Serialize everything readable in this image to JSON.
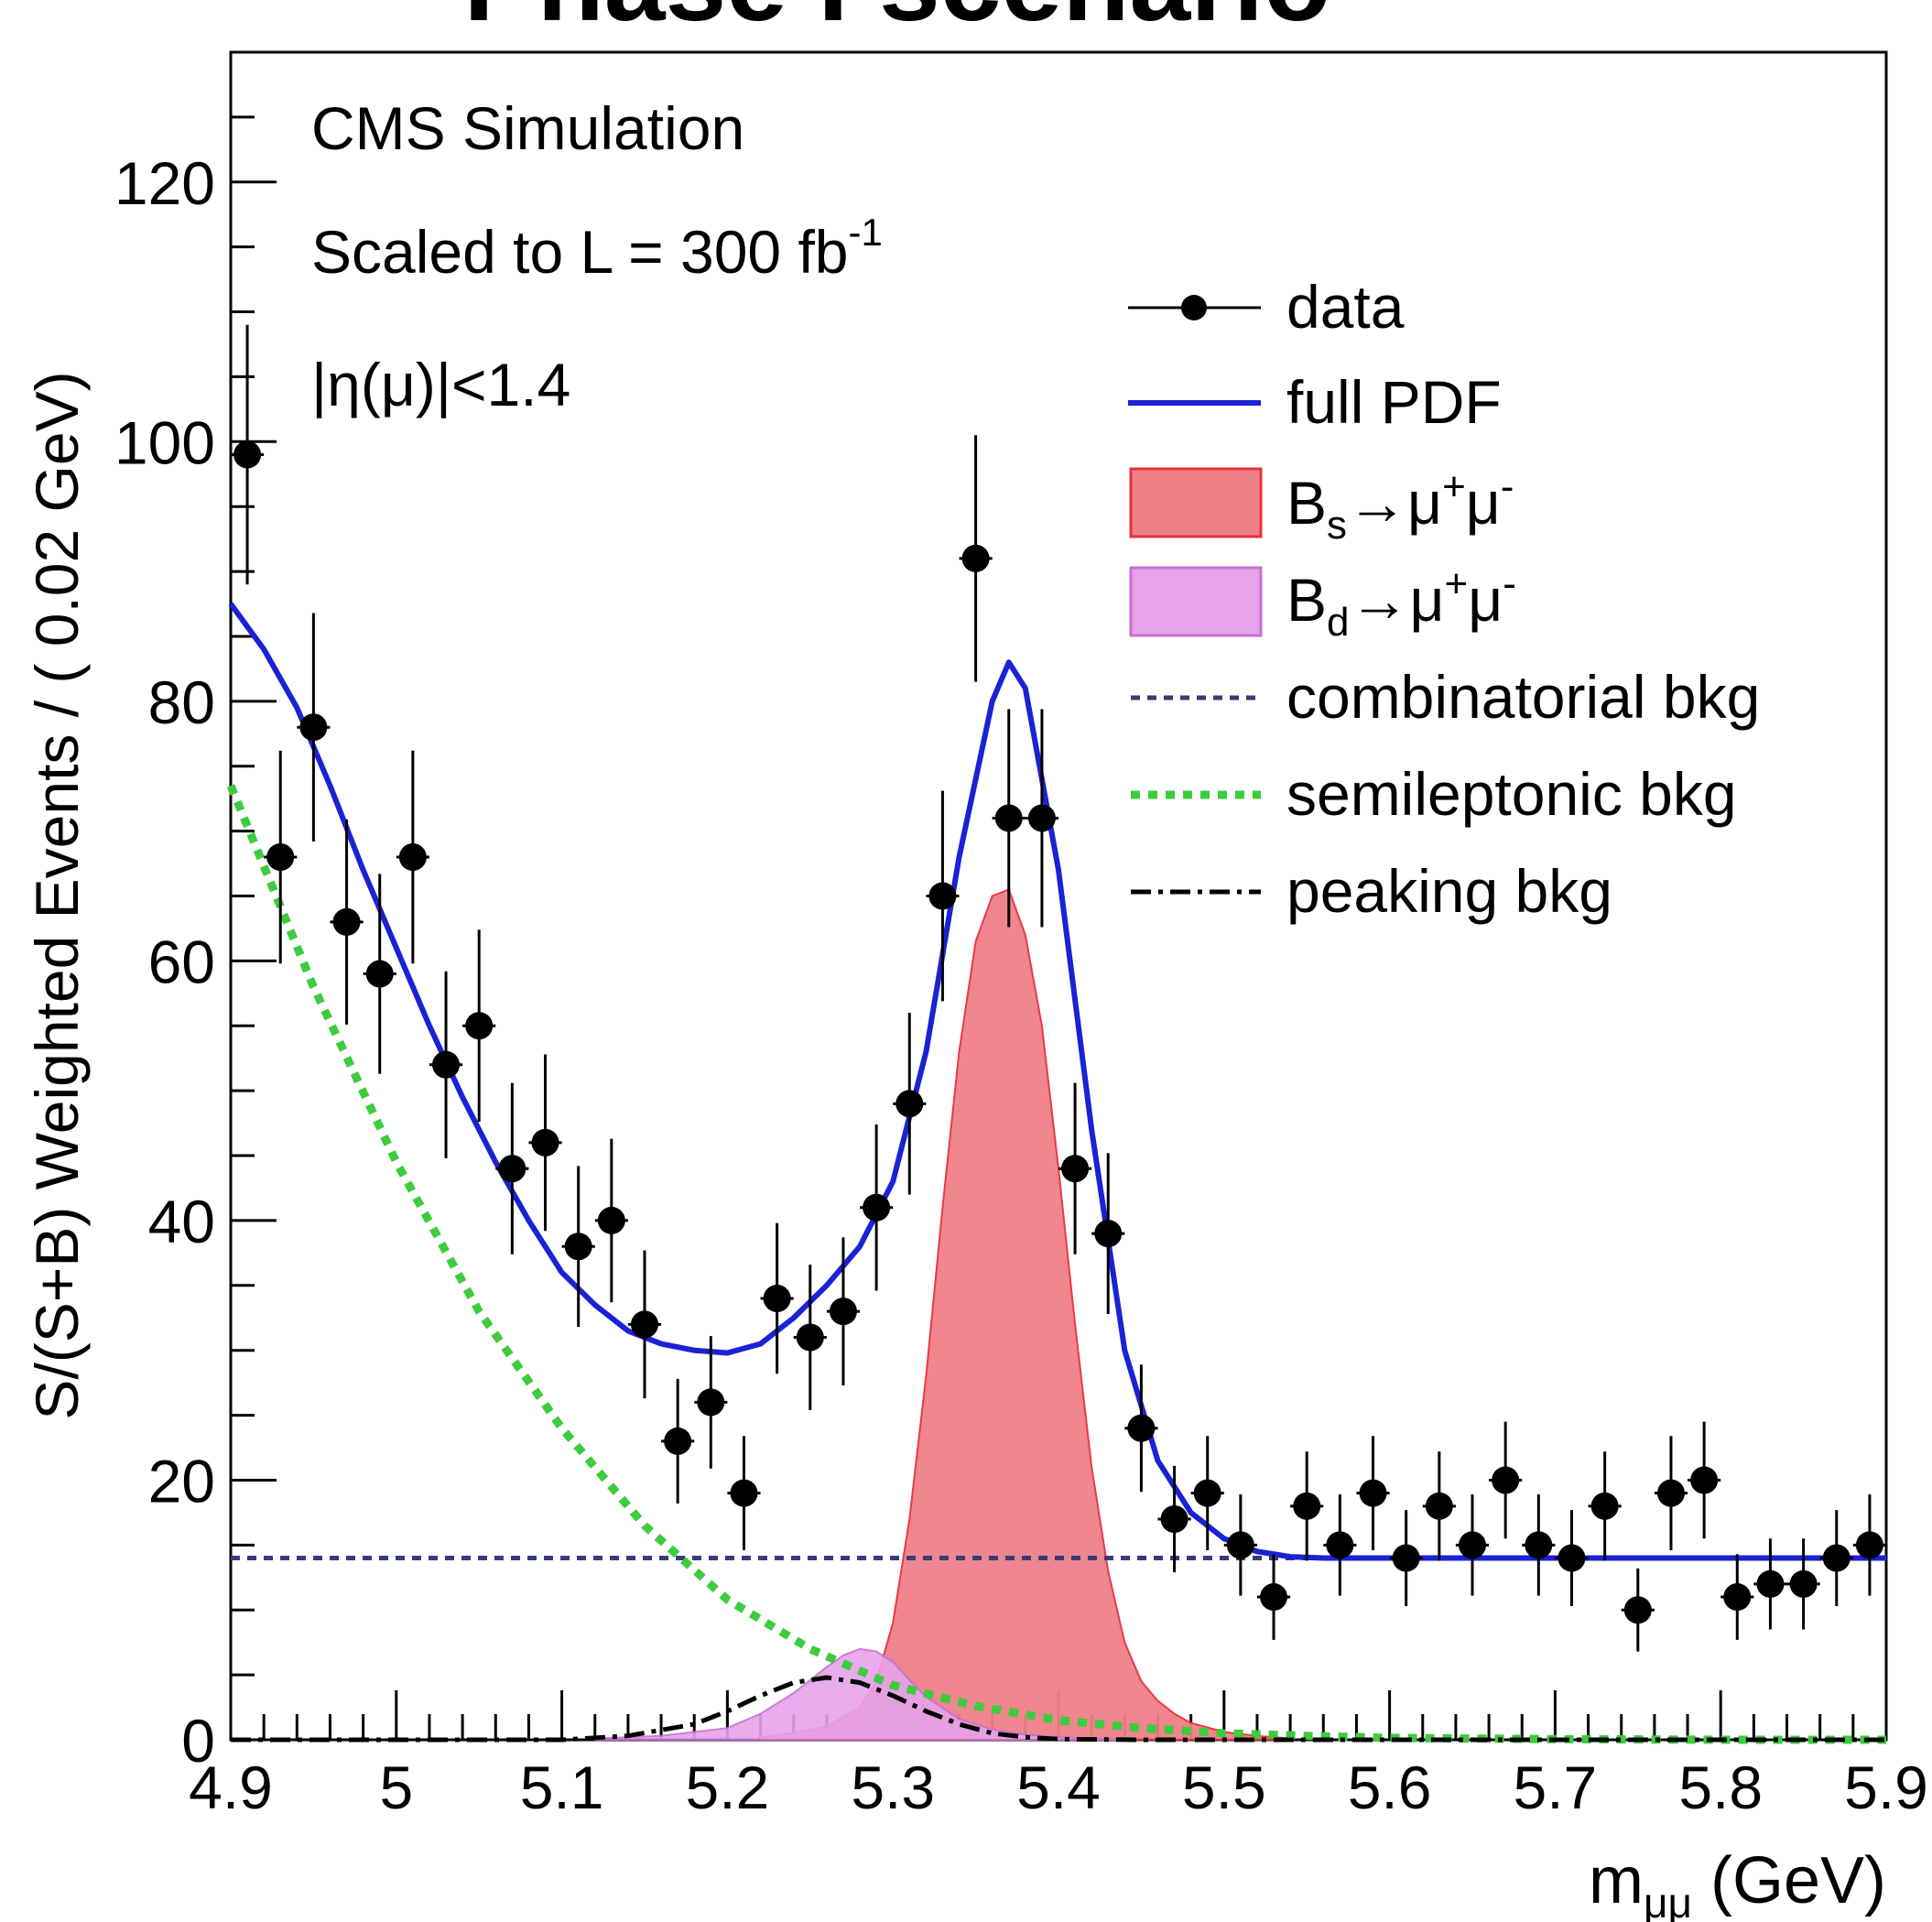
{
  "header": {
    "title_fragment": "Phase I scenario",
    "title_color": "#1b5f9d"
  },
  "chart_data": {
    "type": "scatter",
    "xlabel": "m",
    "xlabel_sub": "μμ",
    "xlabel_unit": " (GeV)",
    "ylabel": "S/(S+B) Weighted Events / ( 0.02 GeV)",
    "xlim": [
      4.9,
      5.9
    ],
    "ylim": [
      0,
      130
    ],
    "x_ticks": [
      "4.9",
      "5",
      "5.1",
      "5.2",
      "5.3",
      "5.4",
      "5.5",
      "5.6",
      "5.7",
      "5.8",
      "5.9"
    ],
    "x_tick_values": [
      4.9,
      5.0,
      5.1,
      5.2,
      5.3,
      5.4,
      5.5,
      5.6,
      5.7,
      5.8,
      5.9
    ],
    "y_ticks": [
      "0",
      "20",
      "40",
      "60",
      "80",
      "100",
      "120"
    ],
    "y_tick_values": [
      0,
      20,
      40,
      60,
      80,
      100,
      120
    ],
    "annotations": {
      "line1": "CMS Simulation",
      "line2_text": "Scaled to L = 300 fb",
      "line2_sup": "-1",
      "line3": "|η(μ)|<1.4"
    },
    "legend_position": "top-right",
    "legend": {
      "data": "data",
      "full_pdf": "full PDF",
      "bs": {
        "base": "B",
        "sub": "s",
        "arrow": "→",
        "mu1": "μ",
        "sup1": "+",
        "mu2": "μ",
        "sup2": "-"
      },
      "bd": {
        "base": "B",
        "sub": "d",
        "arrow": "→",
        "mu1": "μ",
        "sup1": "+",
        "mu2": "μ",
        "sup2": "-"
      },
      "combinatorial": "combinatorial bkg",
      "semileptonic": "semileptonic bkg",
      "peaking": "peaking bkg"
    },
    "colors": {
      "data": "#000000",
      "full_pdf": "#1a22d6",
      "bs_fill": "#f08088",
      "bs_edge": "#e8303c",
      "bd_fill": "#e6a3ea",
      "bd_edge": "#c770d4",
      "combinatorial": "#3a3a7a",
      "semileptonic": "#3ccc3c",
      "peaking": "#000000"
    },
    "bin_width": 0.02,
    "data": {
      "x": [
        4.91,
        4.93,
        4.95,
        4.97,
        4.99,
        5.01,
        5.03,
        5.05,
        5.07,
        5.09,
        5.11,
        5.13,
        5.15,
        5.17,
        5.19,
        5.21,
        5.23,
        5.25,
        5.27,
        5.29,
        5.31,
        5.33,
        5.35,
        5.37,
        5.39,
        5.41,
        5.43,
        5.45,
        5.47,
        5.49,
        5.51,
        5.53,
        5.55,
        5.57,
        5.59,
        5.61,
        5.63,
        5.65,
        5.67,
        5.69,
        5.71,
        5.73,
        5.75,
        5.77,
        5.79,
        5.81,
        5.83,
        5.85,
        5.87,
        5.89
      ],
      "y": [
        99,
        68,
        78,
        63,
        59,
        68,
        52,
        55,
        44,
        46,
        38,
        40,
        32,
        23,
        26,
        19,
        34,
        31,
        33,
        41,
        49,
        65,
        91,
        71,
        71,
        44,
        39,
        24,
        17,
        19,
        15,
        11,
        18,
        15,
        19,
        14,
        18,
        15,
        20,
        15,
        14,
        18,
        10,
        19,
        20,
        11,
        12,
        12,
        14,
        15
      ],
      "yerr": [
        10,
        8.2,
        8.8,
        7.9,
        7.7,
        8.2,
        7.2,
        7.4,
        6.6,
        6.8,
        6.2,
        6.3,
        5.7,
        4.8,
        5.1,
        4.4,
        5.8,
        5.6,
        5.7,
        6.4,
        7.0,
        8.1,
        9.5,
        8.4,
        8.4,
        6.6,
        6.2,
        4.9,
        4.1,
        4.4,
        3.9,
        3.3,
        4.2,
        3.9,
        4.4,
        3.7,
        4.2,
        3.9,
        4.5,
        3.9,
        3.7,
        4.2,
        3.2,
        4.4,
        4.5,
        3.3,
        3.5,
        3.5,
        3.7,
        3.9
      ]
    },
    "full_pdf": {
      "x": [
        4.9,
        4.92,
        4.94,
        4.96,
        4.98,
        5.0,
        5.02,
        5.04,
        5.06,
        5.08,
        5.1,
        5.12,
        5.14,
        5.16,
        5.18,
        5.2,
        5.22,
        5.24,
        5.26,
        5.28,
        5.3,
        5.32,
        5.34,
        5.36,
        5.37,
        5.38,
        5.4,
        5.42,
        5.44,
        5.46,
        5.48,
        5.5,
        5.52,
        5.54,
        5.56,
        5.6,
        5.7,
        5.8,
        5.9
      ],
      "y": [
        87.5,
        84,
        79.5,
        73.5,
        67,
        61,
        55,
        49.5,
        44.5,
        40,
        36,
        33.5,
        31.5,
        30.5,
        30,
        29.8,
        30.5,
        32.5,
        35,
        38,
        43,
        53,
        68,
        80,
        83,
        81,
        67,
        47,
        30,
        21.5,
        17.5,
        15.5,
        14.5,
        14.1,
        14,
        14,
        14,
        14,
        14
      ]
    },
    "bs": {
      "x": [
        5.22,
        5.24,
        5.26,
        5.28,
        5.29,
        5.3,
        5.31,
        5.32,
        5.33,
        5.34,
        5.35,
        5.36,
        5.37,
        5.38,
        5.39,
        5.4,
        5.41,
        5.42,
        5.43,
        5.44,
        5.45,
        5.46,
        5.47,
        5.48,
        5.5,
        5.52,
        5.54
      ],
      "y": [
        0.2,
        0.5,
        1,
        2.5,
        4.5,
        9,
        17,
        28,
        41,
        53,
        61.5,
        65,
        65.5,
        62,
        55,
        44,
        32,
        21,
        13,
        7.5,
        4.5,
        3,
        2,
        1.3,
        0.6,
        0.3,
        0.1
      ]
    },
    "bd": {
      "x": [
        5.12,
        5.16,
        5.2,
        5.22,
        5.24,
        5.26,
        5.27,
        5.28,
        5.29,
        5.3,
        5.31,
        5.32,
        5.34,
        5.36,
        5.38,
        5.4,
        5.44
      ],
      "y": [
        0.1,
        0.3,
        0.9,
        2,
        3.6,
        5.6,
        6.5,
        7,
        6.8,
        6,
        4.6,
        3.3,
        1.6,
        0.8,
        0.4,
        0.2,
        0
      ]
    },
    "combinatorial": {
      "x": [
        4.9,
        5.9
      ],
      "y": [
        14,
        14
      ]
    },
    "semileptonic": {
      "x": [
        4.9,
        4.95,
        5.0,
        5.05,
        5.1,
        5.15,
        5.2,
        5.25,
        5.3,
        5.35,
        5.4,
        5.45,
        5.5,
        5.55,
        5.6,
        5.7,
        5.8,
        5.9
      ],
      "y": [
        73.5,
        58,
        44.5,
        33,
        24,
        16.5,
        10.8,
        7,
        4.2,
        2.6,
        1.5,
        0.9,
        0.5,
        0.3,
        0.15,
        0.05,
        0,
        0
      ]
    },
    "peaking": {
      "x": [
        4.9,
        5.1,
        5.14,
        5.18,
        5.2,
        5.22,
        5.24,
        5.26,
        5.28,
        5.3,
        5.32,
        5.34,
        5.36,
        5.38,
        5.4,
        5.45,
        5.9
      ],
      "y": [
        0,
        0,
        0.3,
        1.2,
        2.2,
        3.4,
        4.4,
        4.8,
        4.4,
        3.4,
        2.2,
        1.2,
        0.5,
        0.2,
        0.05,
        0,
        0
      ]
    }
  }
}
